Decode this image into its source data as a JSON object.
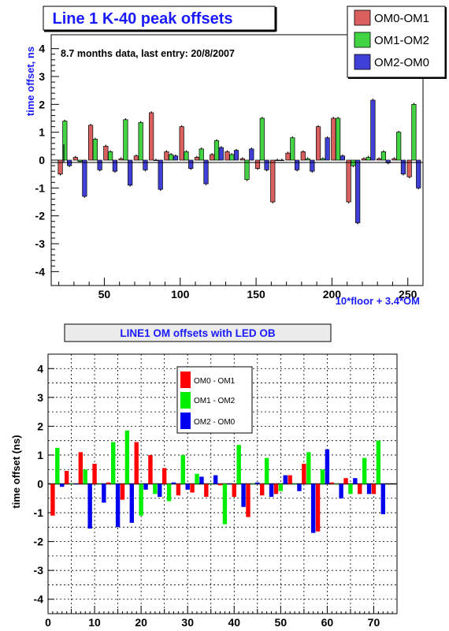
{
  "chart_data": [
    {
      "type": "bar",
      "title": "Line 1 K-40 peak offsets",
      "subtitle": "8.7 months data, last entry: 20/8/2007",
      "xlabel": "10*floor + 3.4*OM",
      "ylabel": "time offset, ns",
      "xlim": [
        15,
        260
      ],
      "ylim": [
        -4.5,
        4.5
      ],
      "x_ticks": [
        50,
        100,
        150,
        200,
        250
      ],
      "y_ticks": [
        -4,
        -3,
        -2,
        -1,
        0,
        1,
        2,
        3,
        4
      ],
      "grid": false,
      "legend_position": "top-right",
      "colors": [
        "#d9605e",
        "#42d442",
        "#4040d8"
      ],
      "series": [
        {
          "name": "OM0-OM1",
          "points": [
            [
              21,
              -0.5
            ],
            [
              31,
              0.1
            ],
            [
              41,
              1.25
            ],
            [
              51,
              0.5
            ],
            [
              61,
              0.05
            ],
            [
              71,
              0.15
            ],
            [
              81,
              1.7
            ],
            [
              91,
              0.3
            ],
            [
              101,
              1.2
            ],
            [
              111,
              0.1
            ],
            [
              121,
              0.2
            ],
            [
              131,
              0.3
            ],
            [
              141,
              0.05
            ],
            [
              151,
              -0.3
            ],
            [
              161,
              -1.5
            ],
            [
              171,
              0.25
            ],
            [
              181,
              0.3
            ],
            [
              191,
              1.2
            ],
            [
              201,
              1.5
            ],
            [
              211,
              -1.5
            ],
            [
              221,
              0.05
            ],
            [
              231,
              0.05
            ],
            [
              241,
              0.05
            ],
            [
              251,
              -0.6
            ]
          ]
        },
        {
          "name": "OM1-OM2",
          "points": [
            [
              24,
              1.4
            ],
            [
              34,
              -0.05
            ],
            [
              44,
              0.75
            ],
            [
              54,
              0.3
            ],
            [
              64,
              1.45
            ],
            [
              74,
              1.35
            ],
            [
              84,
              0.0
            ],
            [
              94,
              0.2
            ],
            [
              104,
              0.3
            ],
            [
              114,
              0.4
            ],
            [
              124,
              0.7
            ],
            [
              134,
              0.2
            ],
            [
              144,
              -0.7
            ],
            [
              154,
              1.5
            ],
            [
              164,
              0.0
            ],
            [
              174,
              0.8
            ],
            [
              184,
              0.05
            ],
            [
              194,
              0.05
            ],
            [
              204,
              1.5
            ],
            [
              214,
              -0.2
            ],
            [
              224,
              0.1
            ],
            [
              234,
              0.3
            ],
            [
              244,
              1.0
            ],
            [
              254,
              2.0
            ]
          ]
        },
        {
          "name": "OM2-OM0",
          "points": [
            [
              27,
              -0.2
            ],
            [
              37,
              -1.3
            ],
            [
              47,
              -0.35
            ],
            [
              57,
              -0.4
            ],
            [
              67,
              -0.9
            ],
            [
              77,
              -0.35
            ],
            [
              87,
              -1.05
            ],
            [
              97,
              0.15
            ],
            [
              107,
              -0.3
            ],
            [
              117,
              -0.85
            ],
            [
              127,
              0.45
            ],
            [
              137,
              0.35
            ],
            [
              147,
              0.4
            ],
            [
              157,
              -0.35
            ],
            [
              167,
              0.0
            ],
            [
              177,
              -0.35
            ],
            [
              187,
              -0.4
            ],
            [
              197,
              0.8
            ],
            [
              207,
              0.15
            ],
            [
              217,
              -2.25
            ],
            [
              227,
              2.15
            ],
            [
              237,
              -0.1
            ],
            [
              247,
              -0.5
            ],
            [
              257,
              -1.0
            ]
          ]
        }
      ]
    },
    {
      "type": "bar",
      "title": "LINE1 OM offsets with LED OB",
      "ylabel": "time offset (ns)",
      "xlabel": "",
      "xlim": [
        0,
        75
      ],
      "ylim": [
        -4.5,
        4.5
      ],
      "x_ticks": [
        0,
        10,
        20,
        30,
        40,
        50,
        60,
        70
      ],
      "y_ticks": [
        -4,
        -3,
        -2,
        -1,
        0,
        1,
        2,
        3,
        4
      ],
      "grid": true,
      "legend_position": "top-center",
      "colors": [
        "#ff0000",
        "#00ee00",
        "#0000ee"
      ],
      "series": [
        {
          "name": "OM0 - OM1",
          "points": [
            [
              1,
              -1.1
            ],
            [
              4,
              0.45
            ],
            [
              7,
              1.1
            ],
            [
              10,
              0.7
            ],
            [
              13,
              0.05
            ],
            [
              16,
              -0.55
            ],
            [
              19,
              1.45
            ],
            [
              22,
              1.0
            ],
            [
              25,
              0.55
            ],
            [
              28,
              -0.4
            ],
            [
              31,
              -0.3
            ],
            [
              34,
              -0.45
            ],
            [
              37,
              -0.05
            ],
            [
              40,
              -0.45
            ],
            [
              43,
              -1.15
            ],
            [
              46,
              -0.4
            ],
            [
              49,
              -0.35
            ],
            [
              52,
              0.3
            ],
            [
              55,
              0.7
            ],
            [
              58,
              -1.65
            ],
            [
              61,
              0.05
            ],
            [
              64,
              0.2
            ],
            [
              67,
              -0.35
            ],
            [
              70,
              -0.35
            ]
          ]
        },
        {
          "name": "OM1 - OM2",
          "points": [
            [
              2,
              1.25
            ],
            [
              5,
              0.0
            ],
            [
              8,
              0.5
            ],
            [
              11,
              0.0
            ],
            [
              14,
              1.45
            ],
            [
              17,
              1.85
            ],
            [
              20,
              -1.1
            ],
            [
              23,
              -0.35
            ],
            [
              26,
              -0.6
            ],
            [
              29,
              1.0
            ],
            [
              32,
              0.35
            ],
            [
              35,
              0.0
            ],
            [
              38,
              -1.4
            ],
            [
              41,
              1.35
            ],
            [
              44,
              0.0
            ],
            [
              47,
              0.9
            ],
            [
              50,
              -0.25
            ],
            [
              53,
              0.0
            ],
            [
              56,
              1.1
            ],
            [
              59,
              0.5
            ],
            [
              62,
              0.0
            ],
            [
              65,
              -0.35
            ],
            [
              68,
              0.9
            ],
            [
              71,
              1.5
            ]
          ]
        },
        {
          "name": "OM2 - OM0",
          "points": [
            [
              3,
              -0.1
            ],
            [
              6,
              0.0
            ],
            [
              9,
              -1.55
            ],
            [
              12,
              -0.65
            ],
            [
              15,
              -1.5
            ],
            [
              18,
              -1.35
            ],
            [
              21,
              -0.2
            ],
            [
              24,
              -0.45
            ],
            [
              27,
              0.05
            ],
            [
              30,
              -0.2
            ],
            [
              33,
              0.25
            ],
            [
              36,
              0.3
            ],
            [
              39,
              0.0
            ],
            [
              42,
              -0.8
            ],
            [
              45,
              0.05
            ],
            [
              48,
              -0.45
            ],
            [
              51,
              0.3
            ],
            [
              54,
              -0.25
            ],
            [
              57,
              -1.7
            ],
            [
              60,
              1.2
            ],
            [
              63,
              -0.5
            ],
            [
              66,
              0.2
            ],
            [
              69,
              -0.35
            ],
            [
              72,
              -1.05
            ]
          ]
        }
      ]
    }
  ]
}
